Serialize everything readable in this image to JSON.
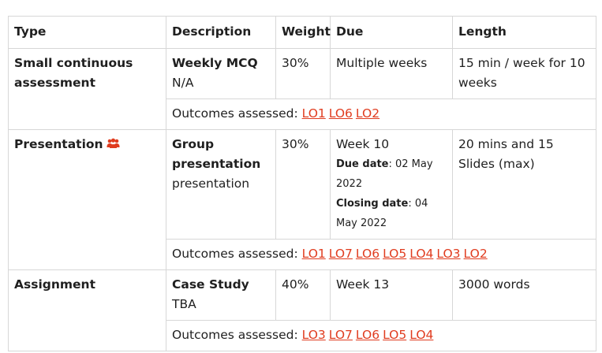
{
  "headers": [
    "Type",
    "Description",
    "Weight",
    "Due",
    "Length"
  ],
  "outcomes_prefix": "Outcomes assessed: ",
  "rows": [
    {
      "type": "Small continuous assessment",
      "desc_title": "Weekly MCQ",
      "desc_sub": "N/A",
      "weight": "30%",
      "due": "Multiple weeks",
      "length": "15 min / week for 10 weeks",
      "outcomes": [
        "LO1",
        "LO6",
        "LO2"
      ]
    },
    {
      "type": "Presentation",
      "type_icon": "group-icon",
      "desc_title": "Group presentation",
      "desc_sub": "presentation",
      "weight": "30%",
      "due": "Week 10",
      "due_date_label": "Due date",
      "due_date_value": ": 02 May 2022",
      "closing_date_label": "Closing date",
      "closing_date_value": ": 04 May 2022",
      "length": "20 mins and 15 Slides (max)",
      "outcomes": [
        "LO1",
        "LO7",
        "LO6",
        "LO5",
        "LO4",
        "LO3",
        "LO2"
      ]
    },
    {
      "type": "Assignment",
      "desc_title": "Case Study",
      "desc_sub": "TBA",
      "weight": "40%",
      "due": "Week 13",
      "length": "3000 words",
      "outcomes": [
        "LO3",
        "LO7",
        "LO6",
        "LO5",
        "LO4"
      ]
    }
  ],
  "colors": {
    "link": "#e03c1f",
    "border": "#d7d7d7",
    "icon": "#e03c1f"
  }
}
